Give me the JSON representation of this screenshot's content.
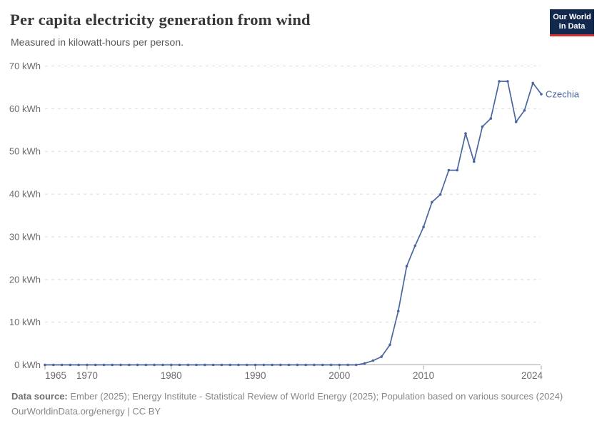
{
  "header": {
    "title": "Per capita electricity generation from wind",
    "subtitle": "Measured in kilowatt-hours per person."
  },
  "logo": {
    "line1": "Our World",
    "line2": "in Data"
  },
  "chart_data": {
    "type": "line",
    "title": "Per capita electricity generation from wind",
    "unit": "kWh",
    "xlim": [
      1965,
      2024
    ],
    "ylim": [
      0,
      70
    ],
    "yticks": [
      0,
      10,
      20,
      30,
      40,
      50,
      60,
      70
    ],
    "ytick_suffix": " kWh",
    "xticks": [
      1965,
      1970,
      1980,
      1990,
      2000,
      2010,
      2024
    ],
    "grid": "horizontal-dashed",
    "legend": "entity-label-at-line-end",
    "x": [
      1965,
      1966,
      1967,
      1968,
      1969,
      1970,
      1971,
      1972,
      1973,
      1974,
      1975,
      1976,
      1977,
      1978,
      1979,
      1980,
      1981,
      1982,
      1983,
      1984,
      1985,
      1986,
      1987,
      1988,
      1989,
      1990,
      1991,
      1992,
      1993,
      1994,
      1995,
      1996,
      1997,
      1998,
      1999,
      2000,
      2001,
      2002,
      2003,
      2004,
      2005,
      2006,
      2007,
      2008,
      2009,
      2010,
      2011,
      2012,
      2013,
      2014,
      2015,
      2016,
      2017,
      2018,
      2019,
      2020,
      2021,
      2022,
      2023,
      2024
    ],
    "series": [
      {
        "name": "Czechia",
        "color": "#4a66a0",
        "values": [
          0,
          0,
          0,
          0,
          0,
          0,
          0,
          0,
          0,
          0,
          0,
          0,
          0,
          0,
          0,
          0,
          0,
          0,
          0,
          0,
          0,
          0,
          0,
          0,
          0,
          0,
          0,
          0,
          0,
          0,
          0,
          0,
          0,
          0,
          0,
          0,
          0,
          0,
          0.35,
          1,
          1.9,
          4.7,
          12.6,
          23.1,
          27.9,
          32.3,
          38.1,
          39.9,
          45.6,
          45.6,
          54.2,
          47.6,
          55.8,
          57.7,
          66.4,
          66.4,
          56.9,
          59.6,
          66,
          63.4
        ]
      }
    ]
  },
  "footer": {
    "datasource_label": "Data source:",
    "datasource_text": "Ember (2025); Energy Institute - Statistical Review of World Energy (2025); Population based on various sources (2024)",
    "link": "OurWorldinData.org/energy",
    "separator": " | ",
    "license": "CC BY"
  },
  "colors": {
    "line": "#4a66a0",
    "grid": "#dcdcdc",
    "axis": "#a6a6a6",
    "axis_text": "#6d6d6d",
    "title_text": "#383838",
    "subtitle_text": "#595959",
    "footer_text": "#878787",
    "logo_bg": "#12294d",
    "logo_accent": "#cf2f2f"
  }
}
